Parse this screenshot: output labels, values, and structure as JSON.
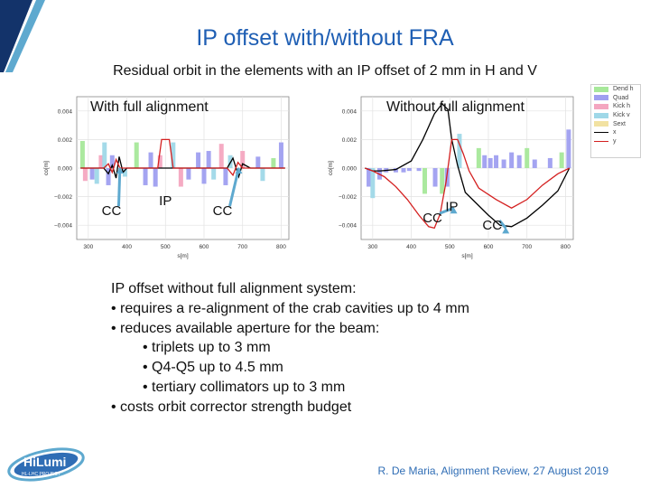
{
  "slide": {
    "title": "IP offset with/without FRA",
    "subtitle": "Residual orbit in the elements with an IP offset of 2 mm in H and V",
    "bullets": [
      {
        "level": 1,
        "text": "IP offset without full alignment system:"
      },
      {
        "level": 1,
        "text": "•  requires a re-alignment of the crab cavities up to 4 mm"
      },
      {
        "level": 1,
        "text": "•  reduces available aperture for the beam:"
      },
      {
        "level": 2,
        "text": "•  triplets up to 3 mm"
      },
      {
        "level": 2,
        "text": "•  Q4-Q5 up to 4.5 mm"
      },
      {
        "level": 2,
        "text": "•  tertiary collimators up to 3 mm"
      },
      {
        "level": 1,
        "text": "•  costs orbit corrector strength budget"
      }
    ],
    "footer": "R. De Maria, Alignment Review, 27 August 2019",
    "logo": {
      "main": "HiLumi",
      "sub": "HL-LHC PROJECT"
    }
  },
  "colors": {
    "title": "#1f5fb4",
    "footer": "#2f6db5",
    "dark_blue": "#13336a",
    "arrow": "#5ea9cf"
  },
  "legend": [
    {
      "label": "Dend h",
      "color": "#a7e89a",
      "kind": "bar"
    },
    {
      "label": "Quad",
      "color": "#9f9ff0",
      "kind": "bar"
    },
    {
      "label": "Kick h",
      "color": "#f4a6c0",
      "kind": "bar"
    },
    {
      "label": "Kick v",
      "color": "#9fd8e8",
      "kind": "bar"
    },
    {
      "label": "Sext",
      "color": "#f2e2a2",
      "kind": "bar"
    },
    {
      "label": "x",
      "color": "#000000",
      "kind": "line"
    },
    {
      "label": "y",
      "color": "#d42020",
      "kind": "line"
    }
  ],
  "chart_data": [
    {
      "type": "line",
      "panel_label": "With full alignment",
      "xlabel": "s[m]",
      "ylabel": "co[m]",
      "xlim": [
        270,
        820
      ],
      "ylim": [
        -0.005,
        0.005
      ],
      "xticks": [
        300,
        400,
        500,
        600,
        700,
        800
      ],
      "yticks": [
        0.004,
        0.002,
        0.0,
        -0.002,
        -0.004
      ],
      "xtick_labels": [
        "300",
        "400",
        "500",
        "600",
        "700",
        "800"
      ],
      "ytick_labels": [
        "0.004",
        "0.002",
        "0.000",
        "−0.002",
        "−0.004"
      ],
      "annotations": [
        {
          "text": "CC",
          "x": 360,
          "y": -0.0033,
          "arrow_to": [
            382,
            0.0
          ]
        },
        {
          "text": "IP",
          "x": 500,
          "y": -0.0026
        },
        {
          "text": "CC",
          "x": 648,
          "y": -0.0033,
          "arrow_to": [
            690,
            0.0
          ]
        }
      ],
      "series": [
        {
          "name": "x",
          "color": "#000000",
          "x": [
            280,
            340,
            352,
            362,
            372,
            380,
            390,
            400,
            420,
            500,
            580,
            605,
            640,
            660,
            675,
            690,
            700,
            720,
            810
          ],
          "y": [
            0.0,
            0.0,
            -0.0004,
            0.0002,
            -0.0007,
            0.0008,
            -0.0003,
            0.0,
            0.0,
            0.0,
            0.0,
            0.0,
            0.0,
            0.0,
            0.0007,
            -0.0006,
            0.0003,
            0.0,
            0.0
          ]
        },
        {
          "name": "y",
          "color": "#d42020",
          "x": [
            280,
            340,
            352,
            362,
            372,
            382,
            392,
            400,
            420,
            480,
            490,
            510,
            520,
            580,
            605,
            640,
            660,
            675,
            688,
            700,
            720,
            810
          ],
          "y": [
            0.0,
            0.0,
            0.0003,
            -0.0003,
            0.0006,
            0.0,
            0.0,
            0.0,
            0.0,
            0.0,
            0.002,
            0.002,
            0.0,
            0.0,
            0.0,
            0.0,
            0.0,
            -0.0005,
            0.0004,
            0.0,
            0.0,
            0.0
          ]
        }
      ],
      "elements": [
        {
          "s": 285,
          "h": 0.0019,
          "kind": "Dend h"
        },
        {
          "s": 292,
          "h": -0.0009,
          "kind": "Kick h"
        },
        {
          "s": 310,
          "h": -0.0008,
          "kind": "Quad"
        },
        {
          "s": 322,
          "h": -0.0011,
          "kind": "Kick v"
        },
        {
          "s": 333,
          "h": 0.0009,
          "kind": "Kick h"
        },
        {
          "s": 342,
          "h": 0.0018,
          "kind": "Kick v"
        },
        {
          "s": 352,
          "h": -0.0012,
          "kind": "Quad"
        },
        {
          "s": 362,
          "h": 0.0009,
          "kind": "Quad"
        },
        {
          "s": 395,
          "h": -0.0006,
          "kind": "Kick v"
        },
        {
          "s": 425,
          "h": 0.0018,
          "kind": "Dend h"
        },
        {
          "s": 448,
          "h": -0.0012,
          "kind": "Quad"
        },
        {
          "s": 462,
          "h": 0.0011,
          "kind": "Quad"
        },
        {
          "s": 474,
          "h": -0.0013,
          "kind": "Quad"
        },
        {
          "s": 486,
          "h": 0.0009,
          "kind": "Kick h"
        },
        {
          "s": 520,
          "h": 0.0018,
          "kind": "Kick v"
        },
        {
          "s": 540,
          "h": -0.0013,
          "kind": "Kick h"
        },
        {
          "s": 560,
          "h": -0.0008,
          "kind": "Quad"
        },
        {
          "s": 585,
          "h": 0.0011,
          "kind": "Quad"
        },
        {
          "s": 600,
          "h": -0.0011,
          "kind": "Quad"
        },
        {
          "s": 612,
          "h": 0.0012,
          "kind": "Quad"
        },
        {
          "s": 625,
          "h": -0.0008,
          "kind": "Kick v"
        },
        {
          "s": 645,
          "h": 0.0017,
          "kind": "Kick h"
        },
        {
          "s": 656,
          "h": -0.0012,
          "kind": "Quad"
        },
        {
          "s": 668,
          "h": 0.0009,
          "kind": "Kick v"
        },
        {
          "s": 700,
          "h": 0.0012,
          "kind": "Kick h"
        },
        {
          "s": 740,
          "h": 0.0008,
          "kind": "Quad"
        },
        {
          "s": 752,
          "h": -0.0009,
          "kind": "Kick v"
        },
        {
          "s": 780,
          "h": 0.0007,
          "kind": "Dend h"
        },
        {
          "s": 800,
          "h": 0.0018,
          "kind": "Quad"
        }
      ]
    },
    {
      "type": "line",
      "panel_label": "Without full alignment",
      "xlabel": "s[m]",
      "ylabel": "co[m]",
      "xlim": [
        270,
        820
      ],
      "ylim": [
        -0.005,
        0.005
      ],
      "xticks": [
        300,
        400,
        500,
        600,
        700,
        800
      ],
      "yticks": [
        0.004,
        0.002,
        0.0,
        -0.002,
        -0.004
      ],
      "xtick_labels": [
        "300",
        "400",
        "500",
        "600",
        "700",
        "800"
      ],
      "ytick_labels": [
        "0.004",
        "0.002",
        "0.000",
        "−0.002",
        "−0.004"
      ],
      "annotations": [
        {
          "text": "CC",
          "x": 455,
          "y": -0.0038,
          "arrow_to": [
            510,
            -0.0028
          ]
        },
        {
          "text": "IP",
          "x": 505,
          "y": -0.003
        },
        {
          "text": "CC",
          "x": 610,
          "y": -0.0043,
          "arrow_to": [
            645,
            -0.0042
          ]
        }
      ],
      "series": [
        {
          "name": "x",
          "color": "#000000",
          "x": [
            280,
            300,
            320,
            360,
            400,
            430,
            460,
            480,
            495,
            505,
            520,
            540,
            570,
            600,
            630,
            660,
            700,
            740,
            780,
            810
          ],
          "y": [
            0.0,
            -0.0002,
            -0.0002,
            -0.0001,
            0.0005,
            0.002,
            0.0038,
            0.0045,
            0.0041,
            0.002,
            0.0002,
            -0.0017,
            -0.0025,
            -0.0033,
            -0.004,
            -0.0041,
            -0.0035,
            -0.0026,
            -0.0016,
            0.0
          ]
        },
        {
          "name": "y",
          "color": "#d42020",
          "x": [
            280,
            300,
            330,
            360,
            390,
            420,
            445,
            460,
            475,
            490,
            505,
            520,
            535,
            550,
            575,
            620,
            660,
            700,
            740,
            780,
            810
          ],
          "y": [
            0.0,
            -0.0002,
            -0.0006,
            -0.0013,
            -0.0022,
            -0.0033,
            -0.0041,
            -0.0042,
            -0.0032,
            -0.001,
            0.002,
            0.002,
            0.001,
            -0.0002,
            -0.0014,
            -0.0022,
            -0.0028,
            -0.0022,
            -0.0012,
            -0.0004,
            0.0
          ]
        }
      ],
      "elements": [
        {
          "s": 290,
          "h": -0.0013,
          "kind": "Quad"
        },
        {
          "s": 300,
          "h": -0.0021,
          "kind": "Kick v"
        },
        {
          "s": 318,
          "h": -0.0008,
          "kind": "Quad"
        },
        {
          "s": 335,
          "h": -0.0003,
          "kind": "Quad"
        },
        {
          "s": 360,
          "h": -0.0003,
          "kind": "Quad"
        },
        {
          "s": 380,
          "h": -0.0003,
          "kind": "Quad"
        },
        {
          "s": 395,
          "h": -0.0002,
          "kind": "Quad"
        },
        {
          "s": 420,
          "h": -0.0002,
          "kind": "Quad"
        },
        {
          "s": 435,
          "h": -0.0018,
          "kind": "Dend h"
        },
        {
          "s": 462,
          "h": -0.0013,
          "kind": "Quad"
        },
        {
          "s": 480,
          "h": -0.0018,
          "kind": "Dend h"
        },
        {
          "s": 493,
          "h": -0.0013,
          "kind": "Quad"
        },
        {
          "s": 525,
          "h": 0.0024,
          "kind": "Kick v"
        },
        {
          "s": 575,
          "h": 0.0014,
          "kind": "Dend h"
        },
        {
          "s": 590,
          "h": 0.0009,
          "kind": "Quad"
        },
        {
          "s": 605,
          "h": 0.0007,
          "kind": "Quad"
        },
        {
          "s": 620,
          "h": 0.0009,
          "kind": "Quad"
        },
        {
          "s": 640,
          "h": 0.0006,
          "kind": "Quad"
        },
        {
          "s": 660,
          "h": 0.0011,
          "kind": "Quad"
        },
        {
          "s": 680,
          "h": 0.0009,
          "kind": "Quad"
        },
        {
          "s": 700,
          "h": 0.0014,
          "kind": "Dend h"
        },
        {
          "s": 720,
          "h": 0.0006,
          "kind": "Quad"
        },
        {
          "s": 760,
          "h": 0.0007,
          "kind": "Quad"
        },
        {
          "s": 790,
          "h": 0.0011,
          "kind": "Dend h"
        },
        {
          "s": 808,
          "h": 0.0027,
          "kind": "Quad"
        }
      ]
    }
  ]
}
